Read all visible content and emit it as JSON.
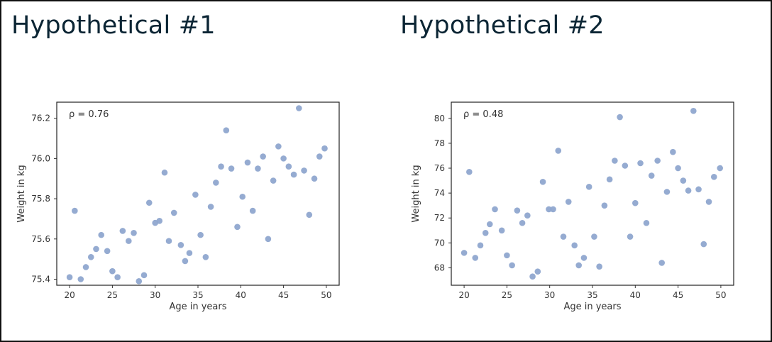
{
  "chart_data": [
    {
      "type": "scatter",
      "title": "Hypothetical #1",
      "xlabel": "Age in years",
      "ylabel": "Weight in kg",
      "annotation": "ρ = 0.76",
      "xlim": [
        18.5,
        51.5
      ],
      "ylim": [
        75.37,
        76.28
      ],
      "xticks": [
        20,
        25,
        30,
        35,
        40,
        45,
        50
      ],
      "yticks": [
        75.4,
        75.6,
        75.8,
        76.0,
        76.2
      ],
      "ytick_decimals": 1,
      "grid": false,
      "legend": "none",
      "point_color": "#8fa7cf",
      "points": [
        [
          20.0,
          75.41
        ],
        [
          20.6,
          75.74
        ],
        [
          21.3,
          75.4
        ],
        [
          21.9,
          75.46
        ],
        [
          22.5,
          75.51
        ],
        [
          23.1,
          75.55
        ],
        [
          23.7,
          75.62
        ],
        [
          24.4,
          75.54
        ],
        [
          25.0,
          75.44
        ],
        [
          25.6,
          75.41
        ],
        [
          26.2,
          75.64
        ],
        [
          26.9,
          75.59
        ],
        [
          27.5,
          75.63
        ],
        [
          28.1,
          75.39
        ],
        [
          28.7,
          75.42
        ],
        [
          29.3,
          75.78
        ],
        [
          30.0,
          75.68
        ],
        [
          30.5,
          75.69
        ],
        [
          31.1,
          75.93
        ],
        [
          31.6,
          75.59
        ],
        [
          32.2,
          75.73
        ],
        [
          33.0,
          75.57
        ],
        [
          33.5,
          75.49
        ],
        [
          34.0,
          75.53
        ],
        [
          34.7,
          75.82
        ],
        [
          35.3,
          75.62
        ],
        [
          35.9,
          75.51
        ],
        [
          36.5,
          75.76
        ],
        [
          37.1,
          75.88
        ],
        [
          37.7,
          75.96
        ],
        [
          38.3,
          76.14
        ],
        [
          38.9,
          75.95
        ],
        [
          39.6,
          75.66
        ],
        [
          40.2,
          75.81
        ],
        [
          40.8,
          75.98
        ],
        [
          41.4,
          75.74
        ],
        [
          42.0,
          75.95
        ],
        [
          42.6,
          76.01
        ],
        [
          43.2,
          75.6
        ],
        [
          43.8,
          75.89
        ],
        [
          44.4,
          76.06
        ],
        [
          45.0,
          76.0
        ],
        [
          45.6,
          75.96
        ],
        [
          46.2,
          75.92
        ],
        [
          46.8,
          76.25
        ],
        [
          47.4,
          75.94
        ],
        [
          48.0,
          75.72
        ],
        [
          48.6,
          75.9
        ],
        [
          49.2,
          76.01
        ],
        [
          49.8,
          76.05
        ]
      ]
    },
    {
      "type": "scatter",
      "title": "Hypothetical #2",
      "xlabel": "Age in years",
      "ylabel": "Weight in kg",
      "annotation": "ρ = 0.48",
      "xlim": [
        18.5,
        51.5
      ],
      "ylim": [
        66.6,
        81.3
      ],
      "xticks": [
        20,
        25,
        30,
        35,
        40,
        45,
        50
      ],
      "yticks": [
        68,
        70,
        72,
        74,
        76,
        78,
        80
      ],
      "ytick_decimals": 0,
      "grid": false,
      "legend": "none",
      "point_color": "#8fa7cf",
      "points": [
        [
          20.0,
          69.2
        ],
        [
          20.6,
          75.7
        ],
        [
          21.3,
          68.8
        ],
        [
          21.9,
          69.8
        ],
        [
          22.5,
          70.8
        ],
        [
          23.0,
          71.5
        ],
        [
          23.6,
          72.7
        ],
        [
          24.4,
          71.0
        ],
        [
          25.0,
          69.0
        ],
        [
          25.6,
          68.2
        ],
        [
          26.2,
          72.6
        ],
        [
          26.8,
          71.6
        ],
        [
          27.4,
          72.2
        ],
        [
          28.0,
          67.3
        ],
        [
          28.6,
          67.7
        ],
        [
          29.2,
          74.9
        ],
        [
          29.9,
          72.7
        ],
        [
          30.4,
          72.7
        ],
        [
          31.0,
          77.4
        ],
        [
          31.6,
          70.5
        ],
        [
          32.2,
          73.3
        ],
        [
          32.9,
          69.8
        ],
        [
          33.4,
          68.2
        ],
        [
          34.0,
          68.8
        ],
        [
          34.6,
          74.5
        ],
        [
          35.2,
          70.5
        ],
        [
          35.8,
          68.1
        ],
        [
          36.4,
          73.0
        ],
        [
          37.0,
          75.1
        ],
        [
          37.6,
          76.6
        ],
        [
          38.2,
          80.1
        ],
        [
          38.8,
          76.2
        ],
        [
          39.4,
          70.5
        ],
        [
          40.0,
          73.2
        ],
        [
          40.6,
          76.4
        ],
        [
          41.3,
          71.6
        ],
        [
          41.9,
          75.4
        ],
        [
          42.6,
          76.6
        ],
        [
          43.1,
          68.4
        ],
        [
          43.7,
          74.1
        ],
        [
          44.4,
          77.3
        ],
        [
          45.0,
          76.0
        ],
        [
          45.6,
          75.0
        ],
        [
          46.2,
          74.2
        ],
        [
          46.8,
          80.6
        ],
        [
          47.4,
          74.3
        ],
        [
          48.0,
          69.9
        ],
        [
          48.6,
          73.3
        ],
        [
          49.2,
          75.3
        ],
        [
          49.9,
          76.0
        ]
      ]
    }
  ]
}
